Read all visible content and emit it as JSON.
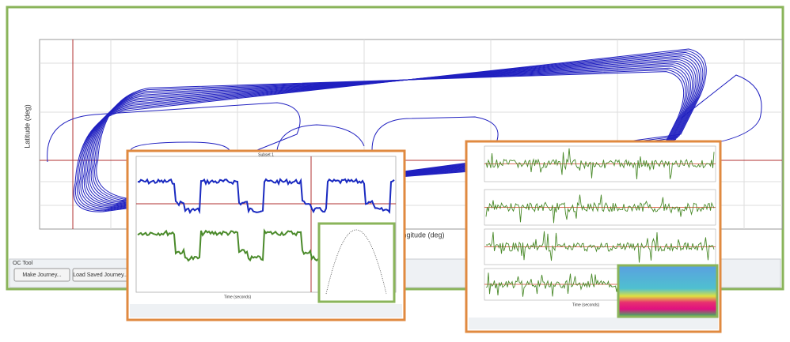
{
  "main_window": {
    "panel_label": "OC Tool",
    "y_axis_label": "Latitude (deg)",
    "x_axis_label": "Longitude (deg)",
    "buttons": [
      "Make Journey...",
      "Load Saved Journey..."
    ]
  },
  "inset_left": {
    "title": "Subset 1",
    "x_axis_label": "Time (seconds)"
  },
  "inset_right": {
    "x_axis_label": "Time (seconds)"
  }
}
